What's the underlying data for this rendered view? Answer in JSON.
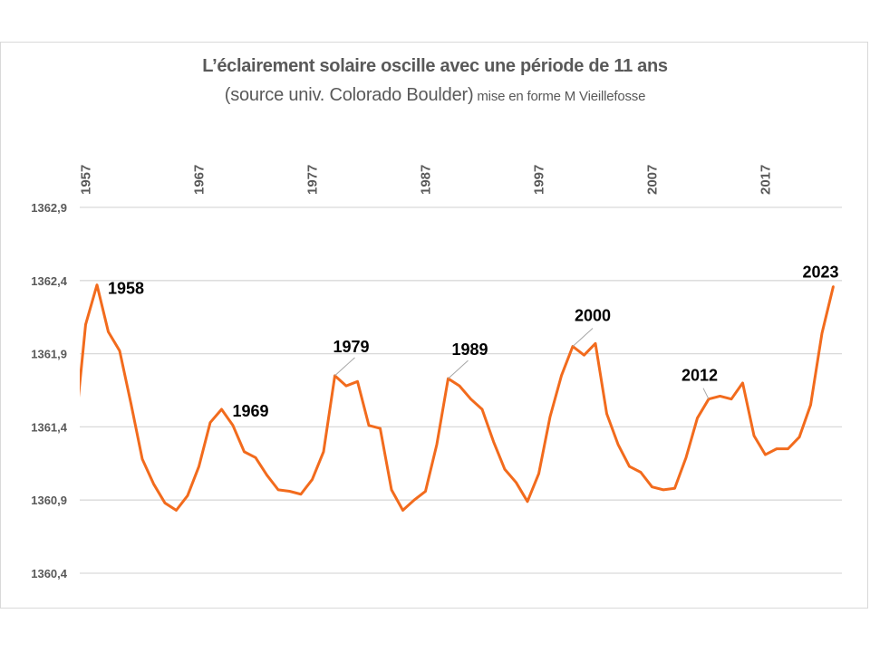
{
  "chart_data": {
    "type": "line",
    "title": "L’éclairement solaire oscille avec une période de 11 ans",
    "subtitle_main": "(source univ. Colorado Boulder)",
    "subtitle_small": " mise en forme M  Vieillefosse",
    "xlabel": "",
    "ylabel": "",
    "xlim": [
      1956.5,
      2023
    ],
    "ylim": [
      1360.4,
      1362.9
    ],
    "grid": true,
    "legend": "none",
    "y_ticks": [
      {
        "value": 1362.9,
        "label": "1362,9"
      },
      {
        "value": 1362.4,
        "label": "1362,4"
      },
      {
        "value": 1361.9,
        "label": "1361,9"
      },
      {
        "value": 1361.4,
        "label": "1361,4"
      },
      {
        "value": 1360.9,
        "label": "1360,9"
      },
      {
        "value": 1360.4,
        "label": "1360,4"
      }
    ],
    "x_ticks": [
      {
        "value": 1957,
        "label": "1957"
      },
      {
        "value": 1967,
        "label": "1967"
      },
      {
        "value": 1977,
        "label": "1977"
      },
      {
        "value": 1987,
        "label": "1987"
      },
      {
        "value": 1997,
        "label": "1997"
      },
      {
        "value": 2007,
        "label": "2007"
      },
      {
        "value": 2017,
        "label": "2017"
      }
    ],
    "series": [
      {
        "name": "Éclairement solaire",
        "color": "#f26b1d",
        "x": [
          1956,
          1957,
          1958,
          1959,
          1960,
          1961,
          1962,
          1963,
          1964,
          1965,
          1966,
          1967,
          1968,
          1969,
          1970,
          1971,
          1972,
          1973,
          1974,
          1975,
          1976,
          1977,
          1978,
          1979,
          1980,
          1981,
          1982,
          1983,
          1984,
          1985,
          1986,
          1987,
          1988,
          1989,
          1990,
          1991,
          1992,
          1993,
          1994,
          1995,
          1996,
          1997,
          1998,
          1999,
          2000,
          2001,
          2002,
          2003,
          2004,
          2005,
          2006,
          2007,
          2008,
          2009,
          2010,
          2011,
          2012,
          2013,
          2014,
          2015,
          2016,
          2017,
          2018,
          2019,
          2020,
          2021,
          2022,
          2023
        ],
        "values": [
          1361.32,
          1362.1,
          1362.37,
          1362.05,
          1361.92,
          1361.56,
          1361.18,
          1361.01,
          1360.88,
          1360.83,
          1360.93,
          1361.13,
          1361.43,
          1361.52,
          1361.41,
          1361.23,
          1361.19,
          1361.07,
          1360.97,
          1360.96,
          1360.94,
          1361.04,
          1361.23,
          1361.75,
          1361.68,
          1361.71,
          1361.41,
          1361.39,
          1360.97,
          1360.83,
          1360.9,
          1360.96,
          1361.28,
          1361.73,
          1361.68,
          1361.59,
          1361.52,
          1361.3,
          1361.11,
          1361.02,
          1360.89,
          1361.08,
          1361.47,
          1361.75,
          1361.95,
          1361.89,
          1361.97,
          1361.49,
          1361.28,
          1361.13,
          1361.09,
          1360.99,
          1360.97,
          1360.98,
          1361.19,
          1361.46,
          1361.59,
          1361.61,
          1361.59,
          1361.7,
          1361.34,
          1361.21,
          1361.25,
          1361.25,
          1361.33,
          1361.55,
          1362.04,
          1362.36
        ]
      }
    ],
    "annotations": [
      {
        "year": 1958,
        "label": "1958",
        "leader": false
      },
      {
        "year": 1969,
        "label": "1969",
        "leader": false
      },
      {
        "year": 1979,
        "label": "1979",
        "leader": true
      },
      {
        "year": 1989,
        "label": "1989",
        "leader": true
      },
      {
        "year": 2000,
        "label": "2000",
        "leader": true
      },
      {
        "year": 2012,
        "label": "2012",
        "leader": true
      },
      {
        "year": 2023,
        "label": "2023",
        "leader": false
      }
    ],
    "colors": {
      "line": "#f26b1d",
      "grid": "#d9d9d9",
      "axis_text": "#595959",
      "annotation_text": "#000000",
      "leader": "#a6a6a6"
    }
  }
}
